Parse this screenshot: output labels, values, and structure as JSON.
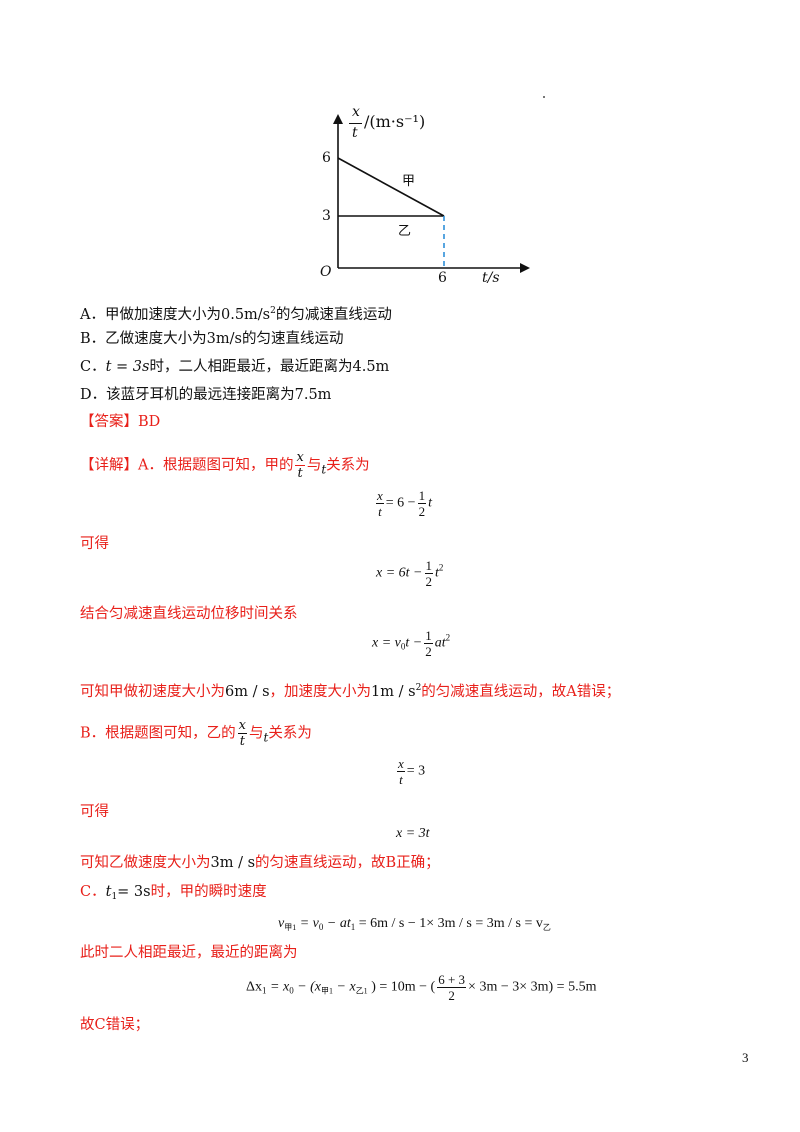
{
  "graph": {
    "y_num": "x",
    "y_den": "t",
    "y_unit": "/(m·s⁻¹)",
    "tick_y_6": "6",
    "tick_y_3": "3",
    "tick_x_6": "6",
    "origin": "O",
    "x_axis_label": "t/s",
    "label_jia": "甲",
    "label_yi": "乙"
  },
  "options": {
    "a_pre": "A．甲做加速度大小为",
    "a_val": "0.5m/s",
    "a_sup": "2",
    "a_post": "的匀减速直线运动",
    "b": "B．乙做速度大小为3m/s的匀速直线运动",
    "c_pre": "C．",
    "c_eq": "t = 3s",
    "c_post": "时，二人相距最近，最近距离为4.5m",
    "d": "D．该蓝牙耳机的最远连接距离为7.5m"
  },
  "answer": "【答案】BD",
  "analysis": {
    "detail_pre": "【详解】A．根据题图可知，甲的",
    "frac_x": "x",
    "frac_t": "t",
    "detail_mid": "与",
    "detail_t": "t",
    "detail_post": "关系为",
    "eq1_lhs_num": "x",
    "eq1_lhs_den": "t",
    "eq1_mid": "= 6 −",
    "eq1_frac_num": "1",
    "eq1_frac_den": "2",
    "eq1_end": "t",
    "kede1": "可得",
    "eq2_pre": "x = 6t −",
    "eq2_frac_num": "1",
    "eq2_frac_den": "2",
    "eq2_end": "t",
    "eq2_sup": "2",
    "jiehe": "结合匀减速直线运动位移时间关系",
    "eq3_pre": "x = v",
    "eq3_sub": "0",
    "eq3_mid": "t −",
    "eq3_frac_num": "1",
    "eq3_frac_den": "2",
    "eq3_end": "at",
    "eq3_sup": "2",
    "kezhi_a_1": "可知甲做初速度大小为",
    "kezhi_a_v": "6m / s",
    "kezhi_a_2": "，加速度大小为",
    "kezhi_a_acc": "1m / s",
    "kezhi_a_sup": "2",
    "kezhi_a_3": "的匀减速直线运动，故A错误；",
    "b_pre": "B．根据题图可知，乙的",
    "b_frac_x": "x",
    "b_frac_t": "t",
    "b_mid": "与",
    "b_t": "t",
    "b_post": "关系为",
    "eq4_num": "x",
    "eq4_den": "t",
    "eq4_rhs": "= 3",
    "kede2": "可得",
    "eq5": "x = 3t",
    "kezhi_b_1": "可知乙做速度大小为",
    "kezhi_b_v": "3m / s",
    "kezhi_b_2": "的匀速直线运动，故B正确；",
    "c_pre": "C．",
    "c_t": "t",
    "c_sub": "1",
    "c_eq": "= 3s",
    "c_post": "时，甲的瞬时速度",
    "eq6_v": "v",
    "eq6_sub": "甲1",
    "eq6_a": "= v",
    "eq6_sub0": "0",
    "eq6_b": "− at",
    "eq6_sub1": "1",
    "eq6_c": "= 6m / s − 1× 3m / s = 3m / s = v",
    "eq6_subyi": "乙",
    "cishi": "此时二人相距最近，最近的距离为",
    "eq7_a": "Δx",
    "eq7_sub1": "1",
    "eq7_b": "= x",
    "eq7_sub0": "0",
    "eq7_c": "− (x",
    "eq7_subjia": "甲1",
    "eq7_d": "− x",
    "eq7_subyi": "乙1",
    "eq7_e": ") = 10m − (",
    "eq7_frac_num": "6 + 3",
    "eq7_frac_den": "2",
    "eq7_f": "× 3m − 3× 3m) = 5.5m",
    "gu_c": "故C错误；"
  },
  "page_number": "3"
}
